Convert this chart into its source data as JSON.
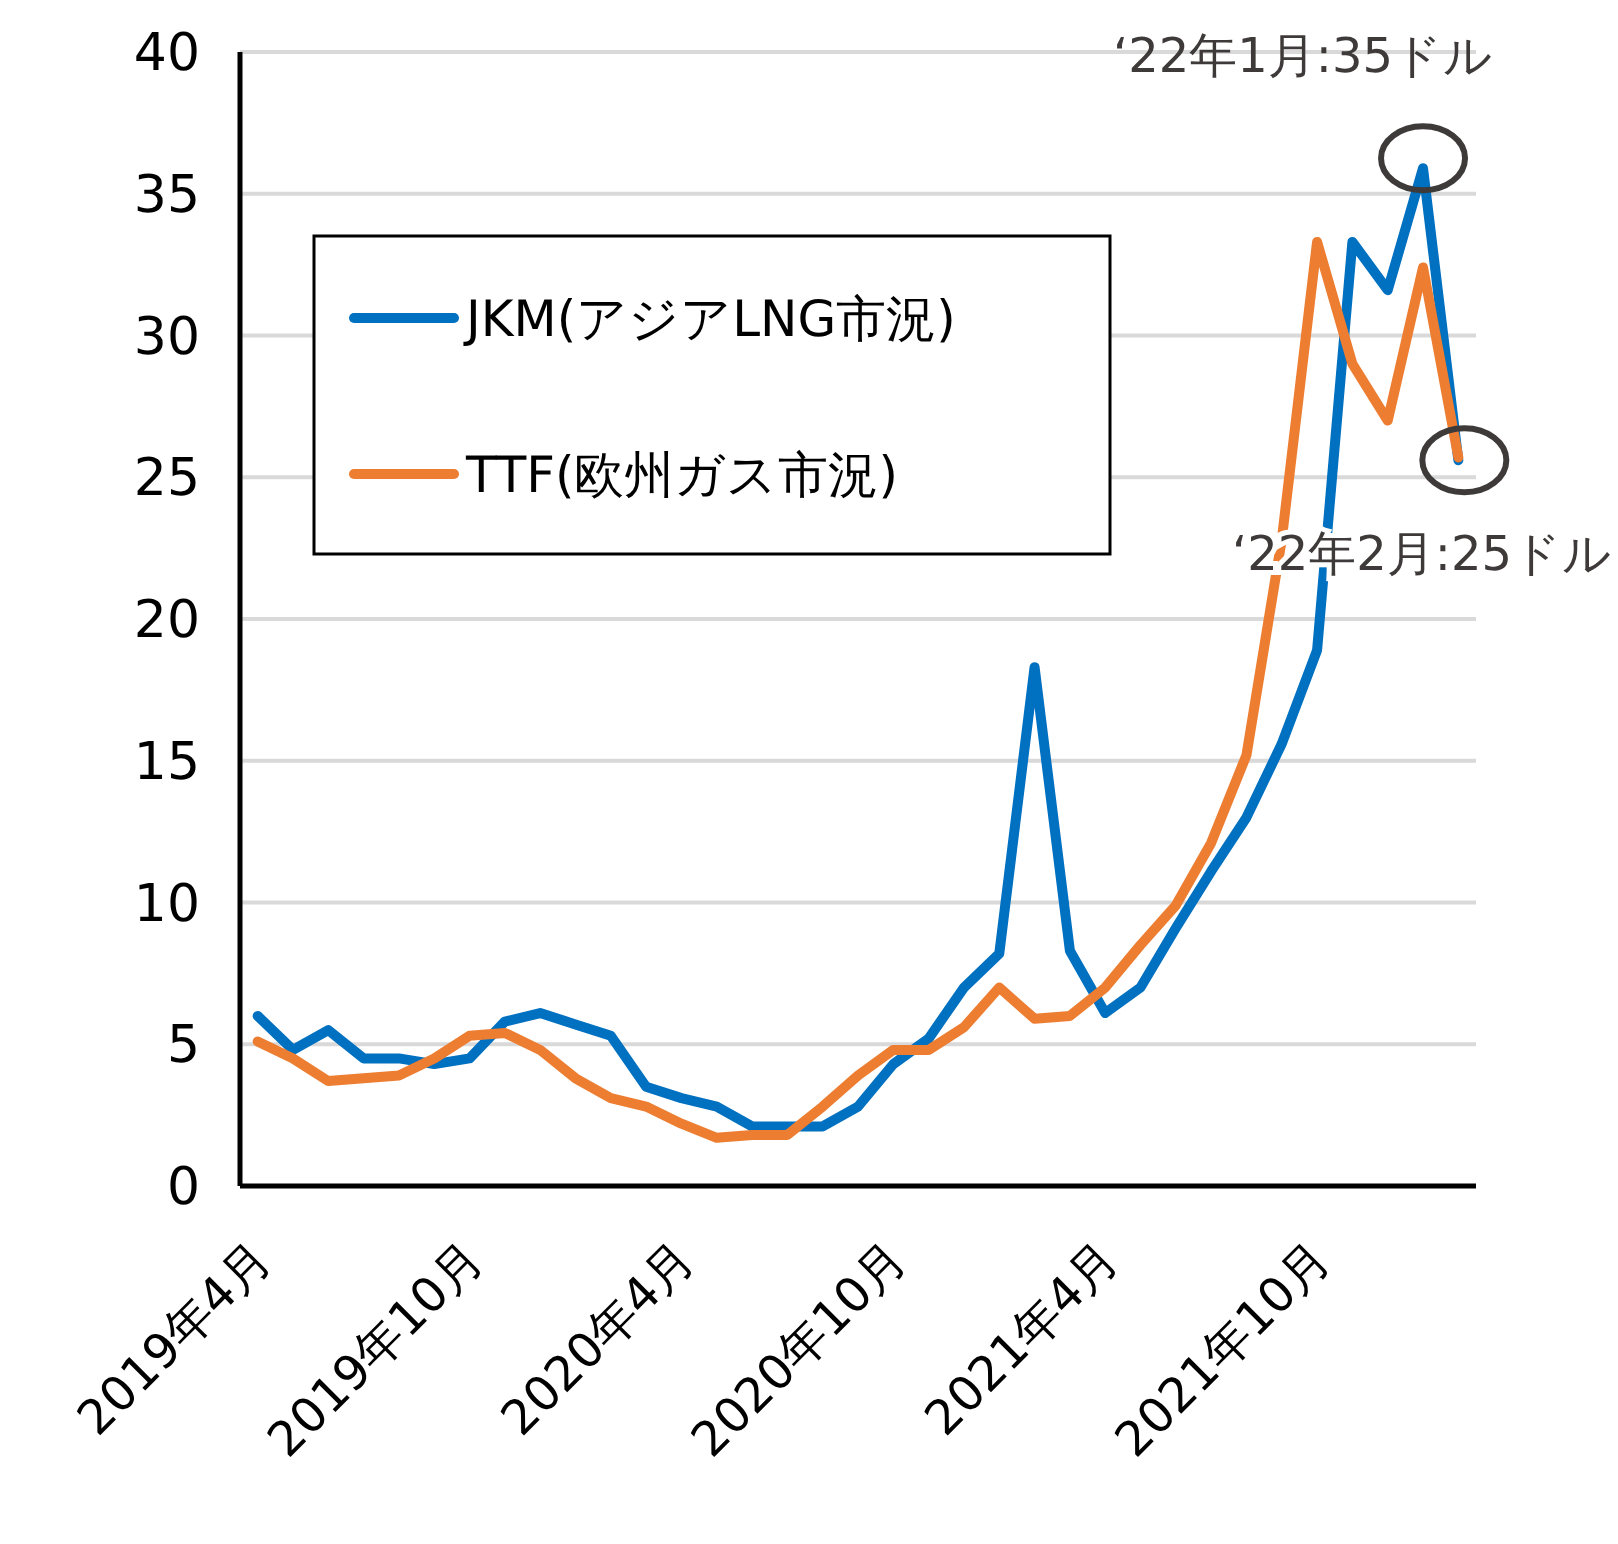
{
  "chart_data": {
    "type": "line",
    "categories": [
      "2019年4月",
      null,
      null,
      null,
      null,
      null,
      "2019年10月",
      null,
      null,
      null,
      null,
      null,
      "2020年4月",
      null,
      null,
      null,
      null,
      null,
      "2020年10月",
      null,
      null,
      null,
      null,
      null,
      "2021年4月",
      null,
      null,
      null,
      null,
      null,
      "2021年10月",
      null,
      null,
      null,
      null
    ],
    "series": [
      {
        "name": "JKM(アジアLNG市況)",
        "color": "#0070c0",
        "values": [
          6.0,
          4.8,
          5.5,
          4.5,
          4.5,
          4.3,
          4.5,
          5.8,
          6.1,
          5.7,
          5.3,
          3.5,
          3.1,
          2.8,
          2.1,
          2.1,
          2.1,
          2.8,
          4.3,
          5.2,
          7.0,
          8.2,
          18.3,
          8.3,
          6.1,
          7.0,
          9.1,
          11.1,
          13.0,
          15.6,
          18.9,
          33.3,
          31.6,
          35.9,
          25.6
        ]
      },
      {
        "name": "TTF(欧州ガス市況)",
        "color": "#ed7d31",
        "values": [
          5.1,
          4.5,
          3.7,
          3.8,
          3.9,
          4.5,
          5.3,
          5.4,
          4.8,
          3.8,
          3.1,
          2.8,
          2.2,
          1.7,
          1.8,
          1.8,
          2.8,
          3.9,
          4.8,
          4.8,
          5.6,
          7.0,
          5.9,
          6.0,
          7.0,
          8.5,
          9.9,
          12.1,
          15.2,
          22.8,
          33.3,
          29.0,
          27.0,
          32.4,
          25.7
        ]
      }
    ],
    "ylim": [
      0,
      40
    ],
    "yticks": [
      0,
      5,
      10,
      15,
      20,
      25,
      30,
      35,
      40
    ],
    "grid": "y",
    "legend": "top left",
    "annotations": [
      "‘22年1月:35ドル",
      "‘22年2月:25ドル"
    ]
  }
}
